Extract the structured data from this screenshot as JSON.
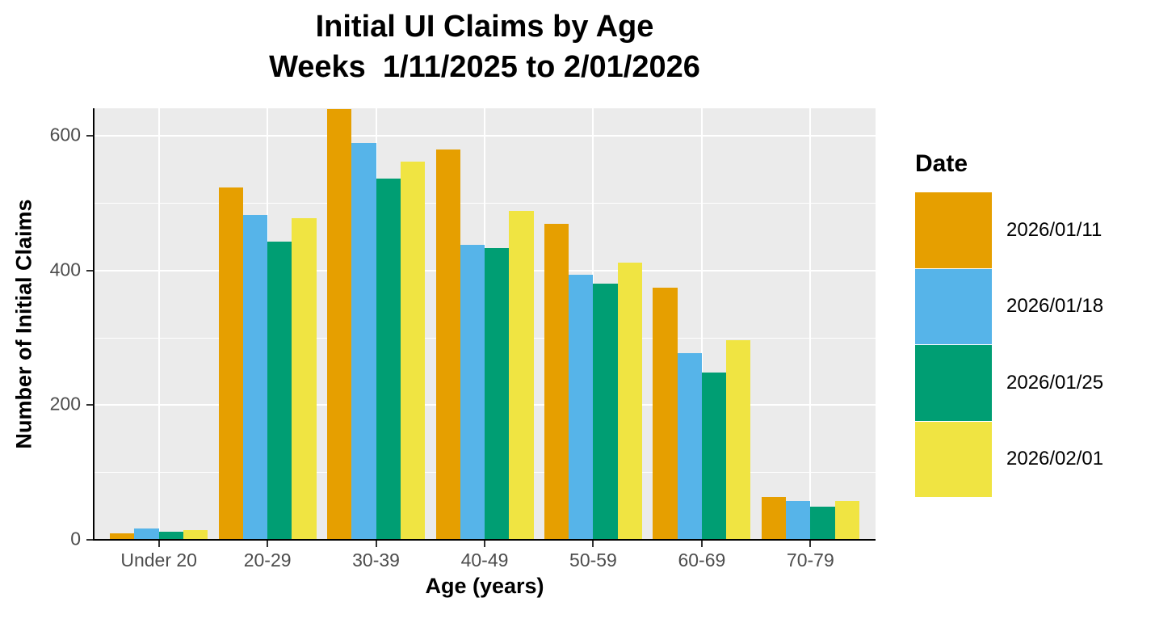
{
  "chart_data": {
    "type": "bar",
    "title": "Initial UI Claims by Age",
    "subtitle": "Weeks  1/11/2025 to 2/01/2026",
    "xlabel": "Age (years)",
    "ylabel": "Number of Initial Claims",
    "categories": [
      "Under 20",
      "20-29",
      "30-39",
      "40-49",
      "50-59",
      "60-69",
      "70-79"
    ],
    "series": [
      {
        "name": "2026/01/11",
        "color": "#E69F00",
        "values": [
          10,
          523,
          640,
          580,
          469,
          374,
          64
        ]
      },
      {
        "name": "2026/01/18",
        "color": "#56B4E9",
        "values": [
          17,
          482,
          589,
          438,
          394,
          277,
          58
        ]
      },
      {
        "name": "2026/01/25",
        "color": "#009E73",
        "values": [
          12,
          443,
          536,
          433,
          380,
          248,
          49
        ]
      },
      {
        "name": "2026/02/01",
        "color": "#F0E442",
        "values": [
          15,
          478,
          562,
          489,
          412,
          297,
          58
        ]
      }
    ],
    "legend": {
      "title": "Date",
      "position": "right"
    },
    "y_ticks": [
      0,
      200,
      400,
      600
    ],
    "y_minor_ticks": [
      100,
      300,
      500
    ],
    "ylim": [
      0,
      641
    ],
    "grid": true,
    "colors": {
      "panel_background": "#EBEBEB",
      "gridline": "#FFFFFF",
      "axis_line": "#000000",
      "tick_label": "#4D4D4D"
    }
  }
}
